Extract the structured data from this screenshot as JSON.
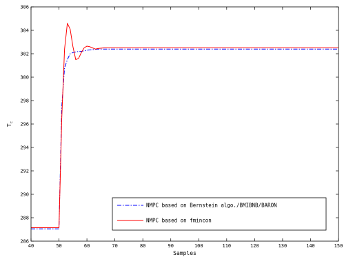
{
  "chart_data": {
    "type": "line",
    "xlabel": "Samples",
    "ylabel": "T",
    "ylabel_subscript": "c",
    "xlim": [
      40,
      150
    ],
    "ylim": [
      286,
      306
    ],
    "xticks": [
      40,
      50,
      60,
      70,
      80,
      90,
      100,
      110,
      120,
      130,
      140,
      150
    ],
    "yticks": [
      286,
      288,
      290,
      292,
      294,
      296,
      298,
      300,
      302,
      304,
      306
    ],
    "grid": false,
    "legend_position": "bottom-right",
    "series": [
      {
        "name": "NMPC based on Bernstein algo./BMIBNB/BARON",
        "color": "#0000ff",
        "style": "dashdot",
        "x": [
          40,
          50,
          51,
          52,
          53,
          54,
          55,
          56,
          57,
          58,
          59,
          60,
          62,
          64,
          66,
          70,
          80,
          100,
          120,
          150
        ],
        "y": [
          287.05,
          287.05,
          297.5,
          300.8,
          301.5,
          302.0,
          302.1,
          302.15,
          302.2,
          302.2,
          302.25,
          302.3,
          302.35,
          302.4,
          302.4,
          302.4,
          302.4,
          302.4,
          302.4,
          302.4
        ]
      },
      {
        "name": "NMPC based on fmincon",
        "color": "#ff0000",
        "style": "solid",
        "x": [
          40,
          50,
          51,
          52,
          53,
          54,
          55,
          56,
          57,
          58,
          59,
          60,
          61,
          62,
          63,
          64,
          66,
          70,
          80,
          100,
          120,
          150
        ],
        "y": [
          287.15,
          287.15,
          296.5,
          302.4,
          304.6,
          304.1,
          302.6,
          301.5,
          301.6,
          302.1,
          302.5,
          302.65,
          302.6,
          302.5,
          302.4,
          302.45,
          302.5,
          302.5,
          302.5,
          302.5,
          302.5,
          302.5
        ]
      }
    ]
  }
}
